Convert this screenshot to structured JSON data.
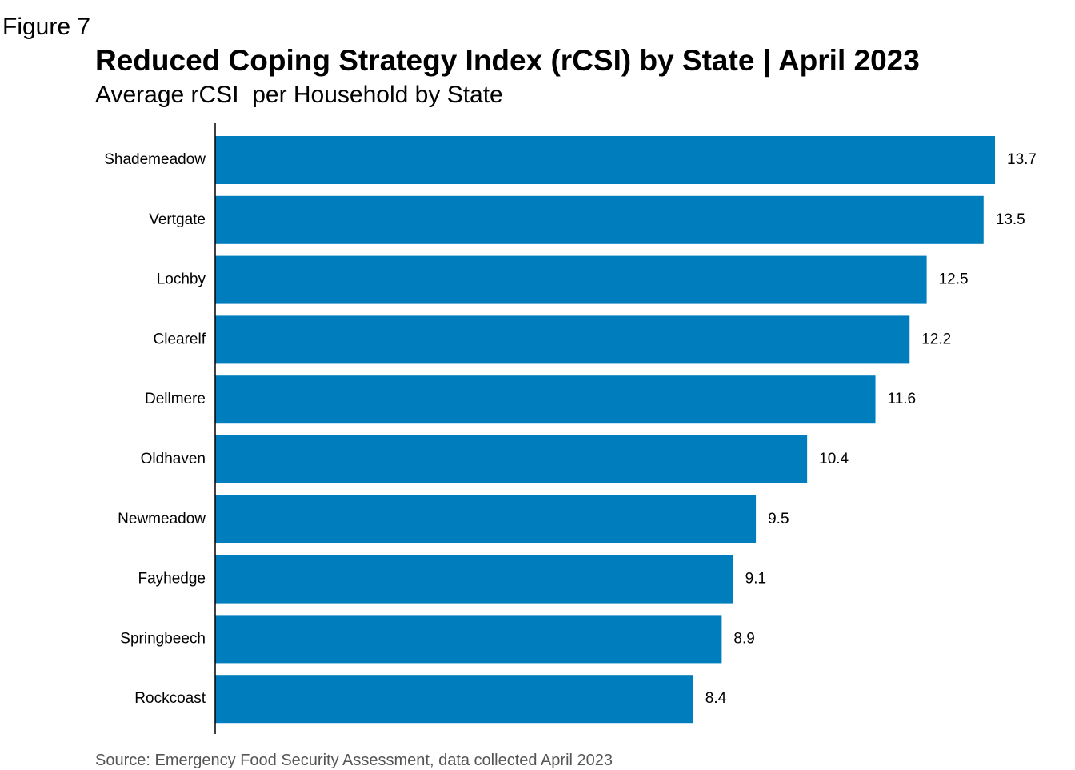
{
  "figure_label": "Figure 7",
  "source": "Source: Emergency Food Security Assessment, data collected April 2023",
  "colors": {
    "bar": "#007DBC",
    "axis": "#000000",
    "text": "#000000",
    "source_text": "#555555"
  },
  "chart_data": {
    "type": "bar",
    "orientation": "horizontal",
    "title": "Reduced Coping Strategy Index (rCSI) by State | April 2023",
    "subtitle": "Average rCSI  per Household by State",
    "categories": [
      "Shademeadow",
      "Vertgate",
      "Lochby",
      "Clearelf",
      "Dellmere",
      "Oldhaven",
      "Newmeadow",
      "Fayhedge",
      "Springbeech",
      "Rockcoast"
    ],
    "values": [
      13.7,
      13.5,
      12.5,
      12.2,
      11.6,
      10.4,
      9.5,
      9.1,
      8.9,
      8.4
    ],
    "value_labels": [
      "13.7",
      "13.5",
      "12.5",
      "12.2",
      "11.6",
      "10.4",
      "9.5",
      "9.1",
      "8.9",
      "8.4"
    ],
    "xlim": [
      0,
      13.7
    ],
    "grid": false,
    "legend": "none"
  }
}
